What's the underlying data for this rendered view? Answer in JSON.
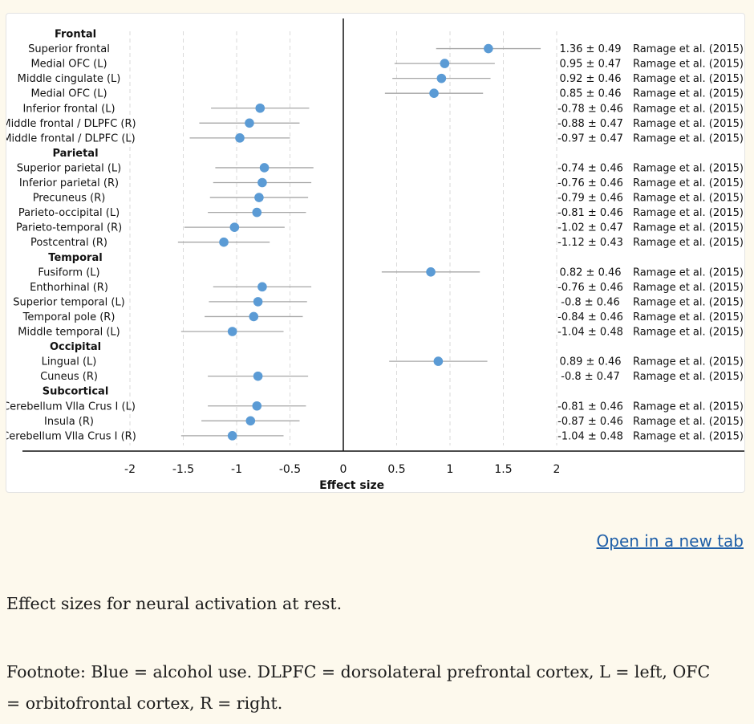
{
  "chart_data": {
    "type": "forest",
    "xlabel": "Effect size",
    "xlim": [
      -2,
      2
    ],
    "x_ticks": [
      "-2",
      "-1.5",
      "-1",
      "-0.5",
      "0",
      "0.5",
      "1",
      "1.5",
      "2"
    ],
    "point_color": "#5b9bd5",
    "groups": [
      {
        "name": "Frontal",
        "items": [
          {
            "label": "Superior frontal",
            "mean": 1.36,
            "sd": 0.49,
            "text": "1.36 ± 0.49",
            "source": "Ramage et al. (2015)"
          },
          {
            "label": "Medial OFC (L)",
            "mean": 0.95,
            "sd": 0.47,
            "text": "0.95 ± 0.47",
            "source": "Ramage et al. (2015)"
          },
          {
            "label": "Middle cingulate (L)",
            "mean": 0.92,
            "sd": 0.46,
            "text": "0.92 ± 0.46",
            "source": "Ramage et al. (2015)"
          },
          {
            "label": "Medial OFC (L)",
            "mean": 0.85,
            "sd": 0.46,
            "text": "0.85 ± 0.46",
            "source": "Ramage et al. (2015)"
          },
          {
            "label": "Inferior frontal (L)",
            "mean": -0.78,
            "sd": 0.46,
            "text": "-0.78 ± 0.46",
            "source": "Ramage et al. (2015)"
          },
          {
            "label": "Middle frontal / DLPFC (R)",
            "mean": -0.88,
            "sd": 0.47,
            "text": "-0.88 ± 0.47",
            "source": "Ramage et al. (2015)"
          },
          {
            "label": "Middle frontal / DLPFC (L)",
            "mean": -0.97,
            "sd": 0.47,
            "text": "-0.97 ± 0.47",
            "source": "Ramage et al. (2015)"
          }
        ]
      },
      {
        "name": "Parietal",
        "items": [
          {
            "label": "Superior parietal (L)",
            "mean": -0.74,
            "sd": 0.46,
            "text": "-0.74 ± 0.46",
            "source": "Ramage et al. (2015)"
          },
          {
            "label": "Inferior parietal (R)",
            "mean": -0.76,
            "sd": 0.46,
            "text": "-0.76 ± 0.46",
            "source": "Ramage et al. (2015)"
          },
          {
            "label": "Precuneus (R)",
            "mean": -0.79,
            "sd": 0.46,
            "text": "-0.79 ± 0.46",
            "source": "Ramage et al. (2015)"
          },
          {
            "label": "Parieto-occipital (L)",
            "mean": -0.81,
            "sd": 0.46,
            "text": "-0.81 ± 0.46",
            "source": "Ramage et al. (2015)"
          },
          {
            "label": "Parieto-temporal (R)",
            "mean": -1.02,
            "sd": 0.47,
            "text": "-1.02 ± 0.47",
            "source": "Ramage et al. (2015)"
          },
          {
            "label": "Postcentral (R)",
            "mean": -1.12,
            "sd": 0.43,
            "text": "-1.12 ± 0.43",
            "source": "Ramage et al. (2015)"
          }
        ]
      },
      {
        "name": "Temporal",
        "items": [
          {
            "label": "Fusiform (L)",
            "mean": 0.82,
            "sd": 0.46,
            "text": "0.82 ± 0.46",
            "source": "Ramage et al. (2015)"
          },
          {
            "label": "Enthorhinal (R)",
            "mean": -0.76,
            "sd": 0.46,
            "text": "-0.76 ± 0.46",
            "source": "Ramage et al. (2015)"
          },
          {
            "label": "Superior temporal (L)",
            "mean": -0.8,
            "sd": 0.46,
            "text": "-0.8 ± 0.46",
            "source": "Ramage et al. (2015)"
          },
          {
            "label": "Temporal pole (R)",
            "mean": -0.84,
            "sd": 0.46,
            "text": "-0.84 ± 0.46",
            "source": "Ramage et al. (2015)"
          },
          {
            "label": "Middle temporal (L)",
            "mean": -1.04,
            "sd": 0.48,
            "text": "-1.04 ± 0.48",
            "source": "Ramage et al. (2015)"
          }
        ]
      },
      {
        "name": "Occipital",
        "items": [
          {
            "label": "Lingual (L)",
            "mean": 0.89,
            "sd": 0.46,
            "text": "0.89 ± 0.46",
            "source": "Ramage et al. (2015)"
          },
          {
            "label": "Cuneus (R)",
            "mean": -0.8,
            "sd": 0.47,
            "text": "-0.8 ± 0.47",
            "source": "Ramage et al. (2015)"
          }
        ]
      },
      {
        "name": "Subcortical",
        "items": [
          {
            "label": "Cerebellum Vlla Crus I (L)",
            "mean": -0.81,
            "sd": 0.46,
            "text": "-0.81 ± 0.46",
            "source": "Ramage et al. (2015)"
          },
          {
            "label": "Insula (R)",
            "mean": -0.87,
            "sd": 0.46,
            "text": "-0.87 ± 0.46",
            "source": "Ramage et al. (2015)"
          },
          {
            "label": "Cerebellum Vlla Crus I (R)",
            "mean": -1.04,
            "sd": 0.48,
            "text": "-1.04 ± 0.48",
            "source": "Ramage et al. (2015)"
          }
        ]
      }
    ]
  },
  "link": {
    "open_new_tab": "Open in a new tab"
  },
  "caption": "Effect sizes for neural activation at rest.",
  "footnote": "Footnote: Blue = alcohol use. DLPFC = dorsolateral prefrontal cortex, L = left, OFC = orbitofrontal cortex, R = right."
}
